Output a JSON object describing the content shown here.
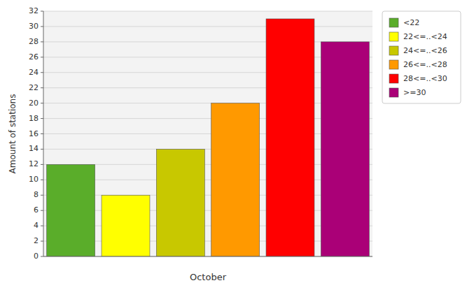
{
  "chart_data": {
    "type": "bar",
    "categories": [
      "<22",
      "22<=..<24",
      "24<=..<26",
      "26<=..<28",
      "28<=..<30",
      ">=30"
    ],
    "values": [
      12,
      8,
      14,
      20,
      31,
      28
    ],
    "colors": [
      "#5aad2a",
      "#ffff00",
      "#c8c800",
      "#ff9900",
      "#ff0000",
      "#aa0077"
    ],
    "xlabel": "October",
    "ylabel": "Amount of stations",
    "ylim": [
      0,
      32
    ],
    "yticks": [
      0,
      2,
      4,
      6,
      8,
      10,
      12,
      14,
      16,
      18,
      20,
      22,
      24,
      26,
      28,
      30,
      32
    ],
    "grid": true,
    "legend": "right",
    "tick_labels": "y"
  }
}
